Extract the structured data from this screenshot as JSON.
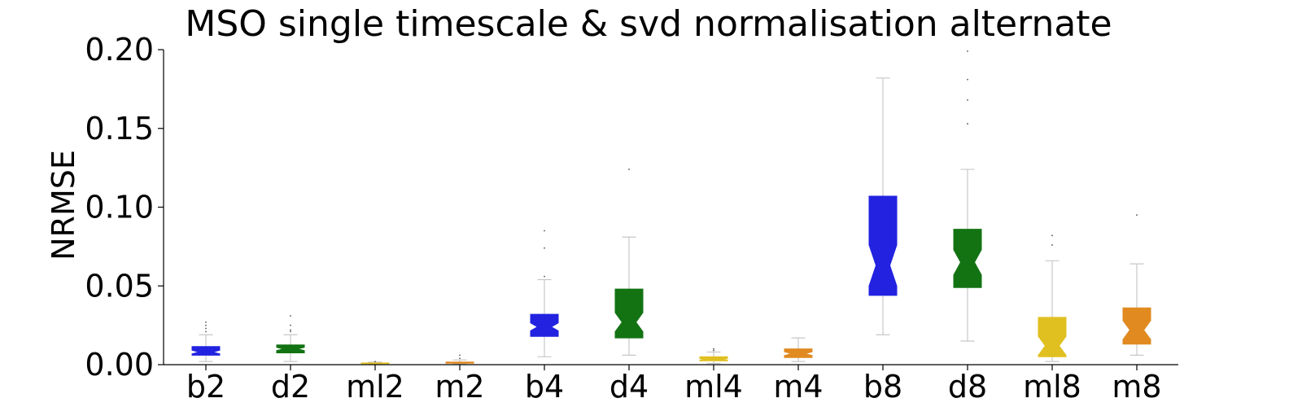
{
  "chart_data": {
    "type": "box",
    "title": "MSO single timescale & svd normalisation alternate",
    "xlabel": "",
    "ylabel": "NRMSE",
    "ylim": [
      0,
      0.2
    ],
    "yticks": [
      "0.00",
      "0.05",
      "0.10",
      "0.15",
      "0.20"
    ],
    "ytick_values": [
      0,
      0.05,
      0.1,
      0.15,
      0.2
    ],
    "grid": false,
    "notched": true,
    "categories": [
      "b2",
      "d2",
      "ml2",
      "m2",
      "b4",
      "d4",
      "ml4",
      "m4",
      "b8",
      "d8",
      "ml8",
      "m8"
    ],
    "colors": {
      "b": "#2222e0",
      "d": "#137313",
      "ml": "#e0c020",
      "m": "#e08a20"
    },
    "boxes": [
      {
        "label": "b2",
        "color_key": "b",
        "whislo": 0.002,
        "q1": 0.006,
        "med": 0.008,
        "q3": 0.0115,
        "whishi": 0.019,
        "notch_lo": 0.0068,
        "notch_hi": 0.0092,
        "fliers": [
          0.021,
          0.023,
          0.025,
          0.027
        ]
      },
      {
        "label": "d2",
        "color_key": "d",
        "whislo": 0.002,
        "q1": 0.0075,
        "med": 0.01,
        "q3": 0.0125,
        "whishi": 0.019,
        "notch_lo": 0.009,
        "notch_hi": 0.011,
        "fliers": [
          0.021,
          0.022,
          0.025,
          0.031
        ]
      },
      {
        "label": "ml2",
        "color_key": "ml",
        "whislo": 0.0003,
        "q1": 0.0006,
        "med": 0.0008,
        "q3": 0.0011,
        "whishi": 0.0016,
        "notch_lo": 0.0007,
        "notch_hi": 0.0009,
        "fliers": [
          0.002
        ]
      },
      {
        "label": "m2",
        "color_key": "m",
        "whislo": 0.0005,
        "q1": 0.0009,
        "med": 0.0012,
        "q3": 0.0017,
        "whishi": 0.003,
        "notch_lo": 0.001,
        "notch_hi": 0.0014,
        "fliers": [
          0.004,
          0.006
        ]
      },
      {
        "label": "b4",
        "color_key": "b",
        "whislo": 0.005,
        "q1": 0.018,
        "med": 0.024,
        "q3": 0.032,
        "whishi": 0.054,
        "notch_lo": 0.0215,
        "notch_hi": 0.0265,
        "fliers": [
          0.056,
          0.074,
          0.085
        ]
      },
      {
        "label": "d4",
        "color_key": "d",
        "whislo": 0.006,
        "q1": 0.017,
        "med": 0.027,
        "q3": 0.048,
        "whishi": 0.081,
        "notch_lo": 0.021,
        "notch_hi": 0.033,
        "fliers": [
          0.124
        ]
      },
      {
        "label": "ml4",
        "color_key": "ml",
        "whislo": 0.0008,
        "q1": 0.0025,
        "med": 0.0035,
        "q3": 0.005,
        "whishi": 0.008,
        "notch_lo": 0.003,
        "notch_hi": 0.004,
        "fliers": [
          0.009,
          0.01
        ]
      },
      {
        "label": "m4",
        "color_key": "m",
        "whislo": 0.002,
        "q1": 0.0045,
        "med": 0.007,
        "q3": 0.01,
        "whishi": 0.017,
        "notch_lo": 0.0058,
        "notch_hi": 0.0082,
        "fliers": []
      },
      {
        "label": "b8",
        "color_key": "b",
        "whislo": 0.019,
        "q1": 0.044,
        "med": 0.063,
        "q3": 0.107,
        "whishi": 0.182,
        "notch_lo": 0.05,
        "notch_hi": 0.076,
        "fliers": []
      },
      {
        "label": "d8",
        "color_key": "d",
        "whislo": 0.015,
        "q1": 0.049,
        "med": 0.065,
        "q3": 0.086,
        "whishi": 0.124,
        "notch_lo": 0.057,
        "notch_hi": 0.073,
        "fliers": [
          0.153,
          0.168,
          0.181,
          0.199
        ]
      },
      {
        "label": "ml8",
        "color_key": "ml",
        "whislo": 0.002,
        "q1": 0.005,
        "med": 0.012,
        "q3": 0.03,
        "whishi": 0.066,
        "notch_lo": 0.006,
        "notch_hi": 0.018,
        "fliers": [
          0.076,
          0.082
        ]
      },
      {
        "label": "m8",
        "color_key": "m",
        "whislo": 0.006,
        "q1": 0.013,
        "med": 0.022,
        "q3": 0.036,
        "whishi": 0.064,
        "notch_lo": 0.016,
        "notch_hi": 0.028,
        "fliers": [
          0.095
        ]
      }
    ]
  }
}
